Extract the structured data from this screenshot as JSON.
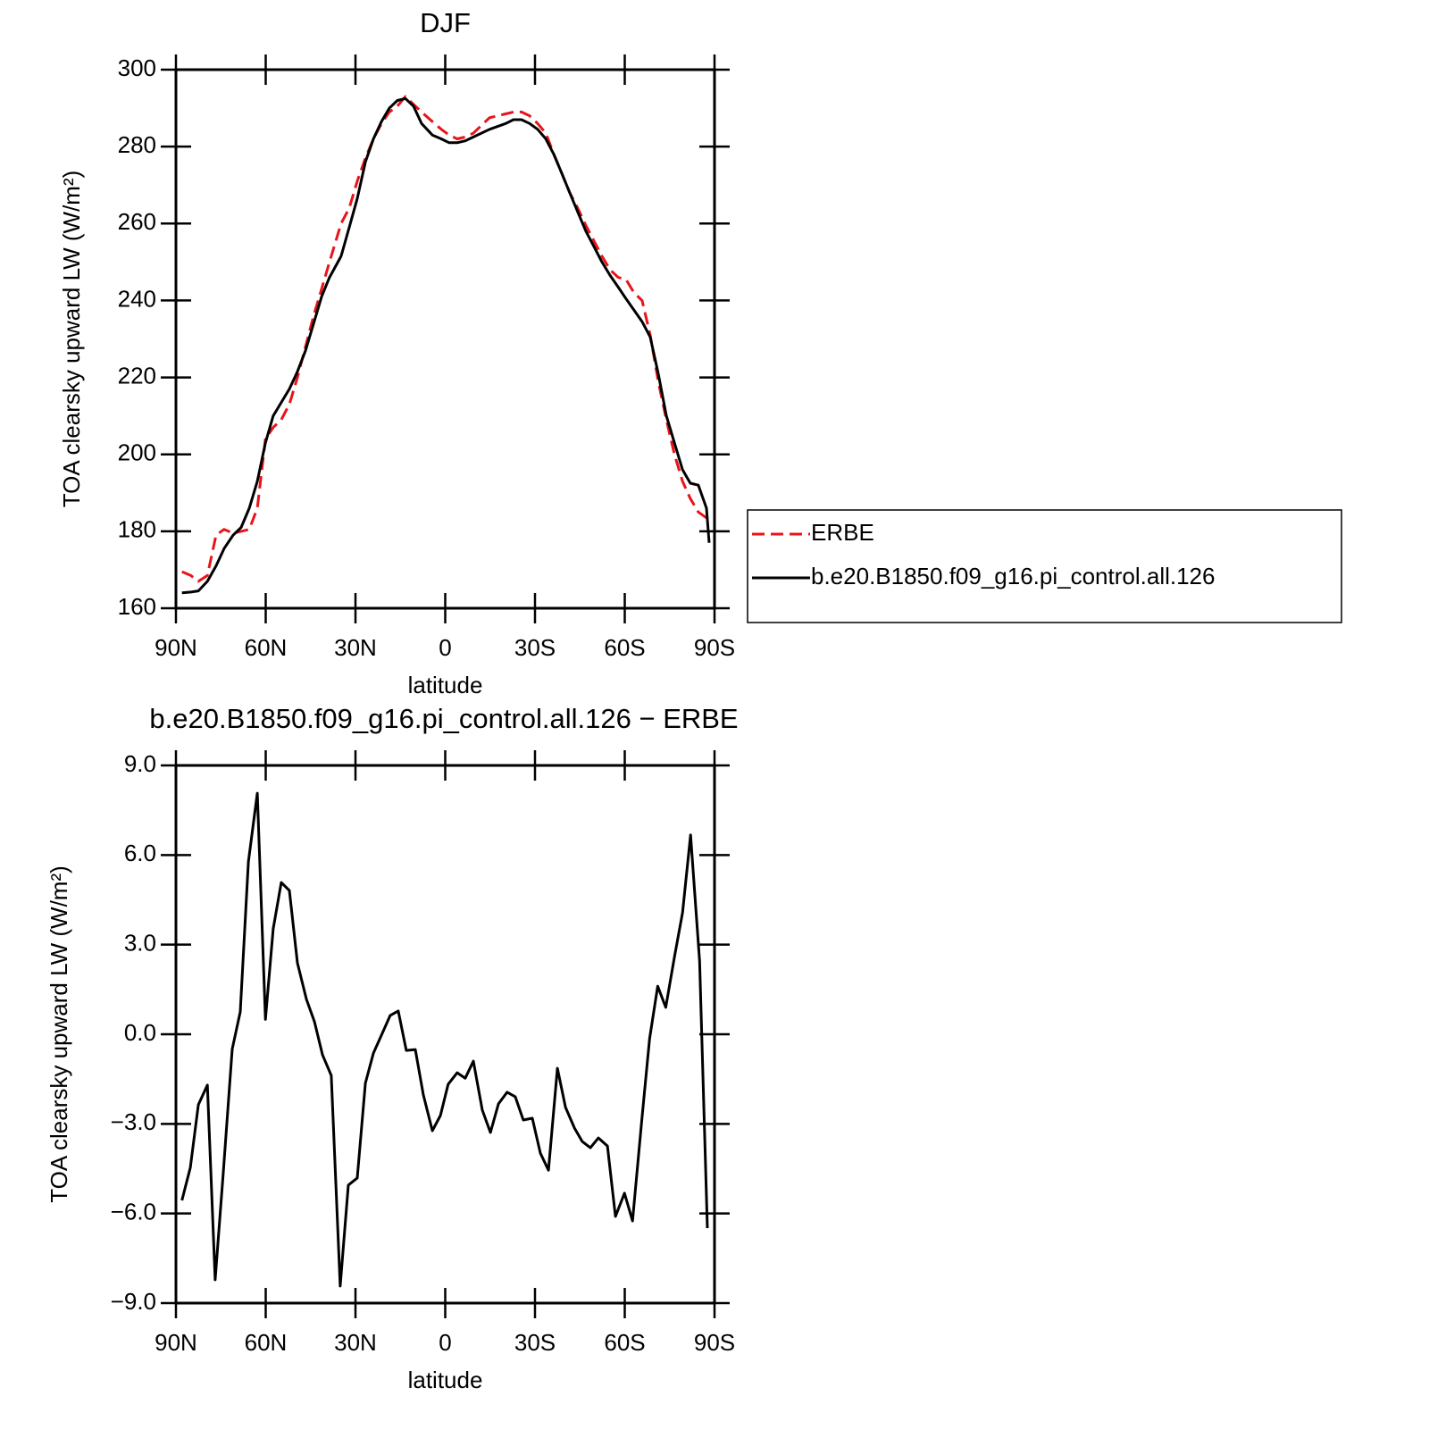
{
  "chart_data": [
    {
      "type": "line",
      "title": "DJF",
      "xlabel": "latitude",
      "ylabel": "TOA clearsky upward LW (W/m²)",
      "x": [
        88,
        85,
        82.5,
        79.5,
        76.6,
        73.9,
        70.9,
        68.2,
        65.5,
        62.8,
        60.1,
        57.5,
        54.8,
        52.1,
        49.4,
        46.7,
        44,
        41.3,
        38.7,
        34.8,
        32.1,
        29.4,
        26.7,
        24,
        21.3,
        18.7,
        16,
        13.3,
        10.6,
        7.9,
        4.3,
        1.3,
        -1.3,
        -4,
        -6.7,
        -9.4,
        -14.8,
        -20.2,
        -22.8,
        -25.5,
        -28.2,
        -30.9,
        -33.6,
        -36.3,
        -39,
        -41.6,
        -44.3,
        -47,
        -49.7,
        -52.4,
        -55.1,
        -57.8,
        -60.4,
        -63.1,
        -65.8,
        -68.5,
        -71.2,
        -73.9,
        -76.6,
        -79.3,
        -81.9,
        -84.6,
        -87.3,
        -88.2
      ],
      "series": [
        {
          "name": "ERBE",
          "color": "#e8141a",
          "linestyle": "dashed",
          "values": [
            169.5,
            168.5,
            167,
            168.5,
            179,
            180.5,
            179.5,
            180,
            180.5,
            186,
            204,
            207,
            209,
            213,
            220,
            228,
            236,
            243,
            250,
            260,
            264,
            271,
            277,
            282,
            286,
            289,
            290.5,
            293,
            291,
            289,
            286.5,
            284.5,
            283,
            282,
            282.5,
            283.5,
            287.5,
            288.5,
            289,
            289,
            288,
            286,
            283.5,
            278,
            273,
            268,
            264,
            259.5,
            255.5,
            251.5,
            248,
            246,
            245.5,
            242,
            240,
            231,
            219,
            209,
            200,
            193,
            188.5,
            185,
            183.5,
            183
          ]
        },
        {
          "name": "b.e20.B1850.f09_g16.pi_control.all.126",
          "color": "#000000",
          "linestyle": "solid",
          "values": [
            164,
            164.2,
            164.5,
            167,
            171,
            175.5,
            179,
            181,
            186,
            193,
            203,
            210,
            213.5,
            217,
            221.5,
            227,
            234,
            241,
            246,
            251.5,
            259,
            266.5,
            276,
            282,
            286.5,
            290,
            292,
            292.5,
            290.5,
            286,
            283,
            282,
            281,
            281,
            281.5,
            282.5,
            284.5,
            286,
            287,
            287,
            286,
            284.5,
            282,
            278,
            273,
            268,
            263,
            258,
            254,
            250,
            246.5,
            243.5,
            240.5,
            237.5,
            234.5,
            230.5,
            221,
            210,
            203,
            196,
            192.5,
            192,
            186,
            177
          ]
        }
      ],
      "xlim": [
        90,
        -90
      ],
      "xticks": [
        {
          "value": 90,
          "label": "90N"
        },
        {
          "value": 60,
          "label": "60N"
        },
        {
          "value": 30,
          "label": "30N"
        },
        0,
        {
          "value": -30,
          "label": "30S"
        },
        {
          "value": -60,
          "label": "60S"
        },
        {
          "value": -90,
          "label": "90S"
        }
      ],
      "ylim": [
        160,
        300
      ],
      "yticks": [
        160,
        180,
        200,
        220,
        240,
        260,
        280,
        300
      ],
      "legend": "right"
    },
    {
      "type": "line",
      "title": "b.e20.B1850.f09_g16.pi_control.all.126 − ERBE",
      "xlabel": "latitude",
      "ylabel": "TOA clearsky upward LW (W/m²)",
      "x": [
        88,
        85.2,
        82.5,
        79.5,
        76.9,
        74.2,
        71.2,
        68.5,
        65.8,
        62.8,
        60.1,
        57.5,
        54.8,
        52.1,
        49.4,
        46.4,
        43.7,
        41,
        38.1,
        35.1,
        32.4,
        29.4,
        26.7,
        24,
        21.3,
        18.4,
        15.7,
        13,
        10,
        7.3,
        4.3,
        1.6,
        -1,
        -4,
        -6.7,
        -9.4,
        -12.4,
        -15.1,
        -17.8,
        -20.7,
        -23.4,
        -26.1,
        -29.1,
        -31.8,
        -34.5,
        -37.5,
        -40.2,
        -43.2,
        -45.8,
        -48.5,
        -51.2,
        -54.2,
        -56.9,
        -59.9,
        -62.6,
        -65.6,
        -68.3,
        -71,
        -73.7,
        -76.7,
        -79.3,
        -82,
        -85,
        -87.6
      ],
      "series": [
        {
          "color": "#000000",
          "linestyle": "solid",
          "values": [
            -5.56,
            -4.46,
            -2.36,
            -1.7,
            -8.22,
            -4.67,
            -0.5,
            0.75,
            5.77,
            8.07,
            0.5,
            3.53,
            5.08,
            4.81,
            2.39,
            1.17,
            0.42,
            -0.69,
            -1.38,
            -8.43,
            -5.05,
            -4.81,
            -1.64,
            -0.63,
            -0.03,
            0.63,
            0.78,
            -0.54,
            -0.51,
            -2.03,
            -3.23,
            -2.72,
            -1.67,
            -1.29,
            -1.47,
            -0.9,
            -2.54,
            -3.29,
            -2.33,
            -1.94,
            -2.09,
            -2.87,
            -2.81,
            -3.98,
            -4.55,
            -1.14,
            -2.45,
            -3.14,
            -3.59,
            -3.8,
            -3.47,
            -3.74,
            -6.1,
            -5.32,
            -6.25,
            -2.96,
            -0.15,
            1.61,
            0.9,
            2.63,
            4.07,
            6.67,
            2.45,
            -6.49
          ]
        }
      ],
      "xlim": [
        90,
        -90
      ],
      "xticks": [
        {
          "value": 90,
          "label": "90N"
        },
        {
          "value": 60,
          "label": "60N"
        },
        {
          "value": 30,
          "label": "30N"
        },
        0,
        {
          "value": -30,
          "label": "30S"
        },
        {
          "value": -60,
          "label": "60S"
        },
        {
          "value": -90,
          "label": "90S"
        }
      ],
      "ylim": [
        -9,
        9
      ],
      "yticks": [
        {
          "value": -9,
          "label": "−9.0"
        },
        {
          "value": -6,
          "label": "−6.0"
        },
        {
          "value": -3,
          "label": "−3.0"
        },
        {
          "value": 0,
          "label": "0.0"
        },
        {
          "value": 3,
          "label": "3.0"
        },
        {
          "value": 6,
          "label": "6.0"
        },
        {
          "value": 9,
          "label": "9.0"
        }
      ]
    }
  ]
}
